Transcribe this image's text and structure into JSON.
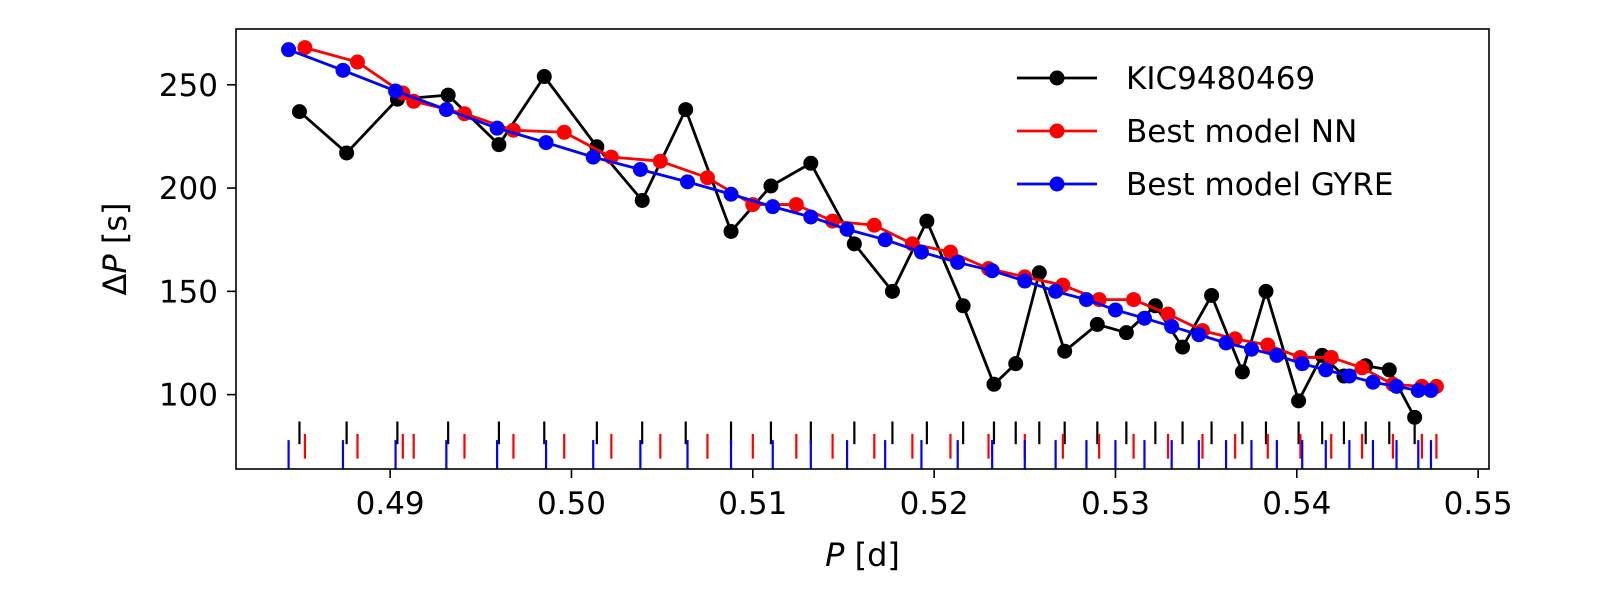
{
  "chart_data": {
    "type": "line",
    "xlabel": "P [d]",
    "ylabel": "ΔP [s]",
    "xlim": [
      0.4815,
      0.5506
    ],
    "ylim": [
      64,
      277
    ],
    "xticks": [
      0.49,
      0.5,
      0.51,
      0.52,
      0.53,
      0.54,
      0.55
    ],
    "xtick_labels": [
      "0.49",
      "0.50",
      "0.51",
      "0.52",
      "0.53",
      "0.54",
      "0.55"
    ],
    "yticks": [
      100,
      150,
      200,
      250
    ],
    "ytick_labels": [
      "100",
      "150",
      "200",
      "250"
    ],
    "legend_position": "top-right",
    "series": [
      {
        "name": "KIC9480469",
        "color": "#000000",
        "x": [
          0.485,
          0.4876,
          0.4904,
          0.4932,
          0.496,
          0.4985,
          0.5014,
          0.5039,
          0.5063,
          0.5088,
          0.511,
          0.5132,
          0.5156,
          0.5177,
          0.5196,
          0.5216,
          0.5233,
          0.5245,
          0.5258,
          0.5272,
          0.529,
          0.5306,
          0.5322,
          0.5337,
          0.5353,
          0.537,
          0.5383,
          0.5401,
          0.5414,
          0.5426,
          0.5438,
          0.5451,
          0.5465
        ],
        "y": [
          237,
          217,
          243,
          245,
          221,
          254,
          220,
          194,
          238,
          179,
          201,
          212,
          173,
          150,
          184,
          143,
          105,
          115,
          159,
          121,
          134,
          130,
          143,
          123,
          148,
          111,
          150,
          97,
          119,
          109,
          114,
          112,
          89
        ]
      },
      {
        "name": "Best model NN",
        "color": "#ff0000",
        "x": [
          0.4853,
          0.4882,
          0.4907,
          0.4913,
          0.4941,
          0.4968,
          0.4996,
          0.5022,
          0.5049,
          0.5075,
          0.51,
          0.5124,
          0.5144,
          0.5167,
          0.5188,
          0.5209,
          0.523,
          0.525,
          0.5271,
          0.5291,
          0.531,
          0.5329,
          0.5348,
          0.5366,
          0.5384,
          0.5402,
          0.5419,
          0.5436,
          0.5453,
          0.5469,
          0.5477
        ],
        "y": [
          268,
          261,
          246,
          242,
          236,
          228,
          227,
          215,
          213,
          205,
          192,
          192,
          184,
          182,
          173,
          169,
          161,
          157,
          153,
          146,
          146,
          139,
          131,
          127,
          124,
          118,
          118,
          113,
          105,
          104,
          104
        ]
      },
      {
        "name": "Best model GYRE",
        "color": "#0000ff",
        "x": [
          0.4844,
          0.4874,
          0.4903,
          0.4931,
          0.4959,
          0.4986,
          0.5012,
          0.5038,
          0.5064,
          0.5088,
          0.5111,
          0.5132,
          0.5152,
          0.5173,
          0.5193,
          0.5213,
          0.5232,
          0.525,
          0.5267,
          0.5284,
          0.53,
          0.5316,
          0.5331,
          0.5346,
          0.5361,
          0.5375,
          0.5389,
          0.5403,
          0.5416,
          0.5429,
          0.5442,
          0.5455,
          0.5467,
          0.5474
        ],
        "y": [
          267,
          257,
          247,
          238,
          229,
          222,
          215,
          209,
          203,
          197,
          191,
          186,
          180,
          175,
          169,
          164,
          160,
          155,
          150,
          146,
          141,
          137,
          133,
          129,
          125,
          122,
          119,
          115,
          112,
          109,
          106,
          104,
          102,
          102
        ]
      }
    ],
    "period_markers": [
      {
        "series": "KIC9480469",
        "color": "#000000",
        "y_range": [
          76,
          87
        ]
      },
      {
        "series": "Best model NN",
        "color": "#ff0000",
        "y_range": [
          69,
          81
        ]
      },
      {
        "series": "Best model GYRE",
        "color": "#0000ff",
        "y_range": [
          64,
          78
        ]
      }
    ]
  }
}
